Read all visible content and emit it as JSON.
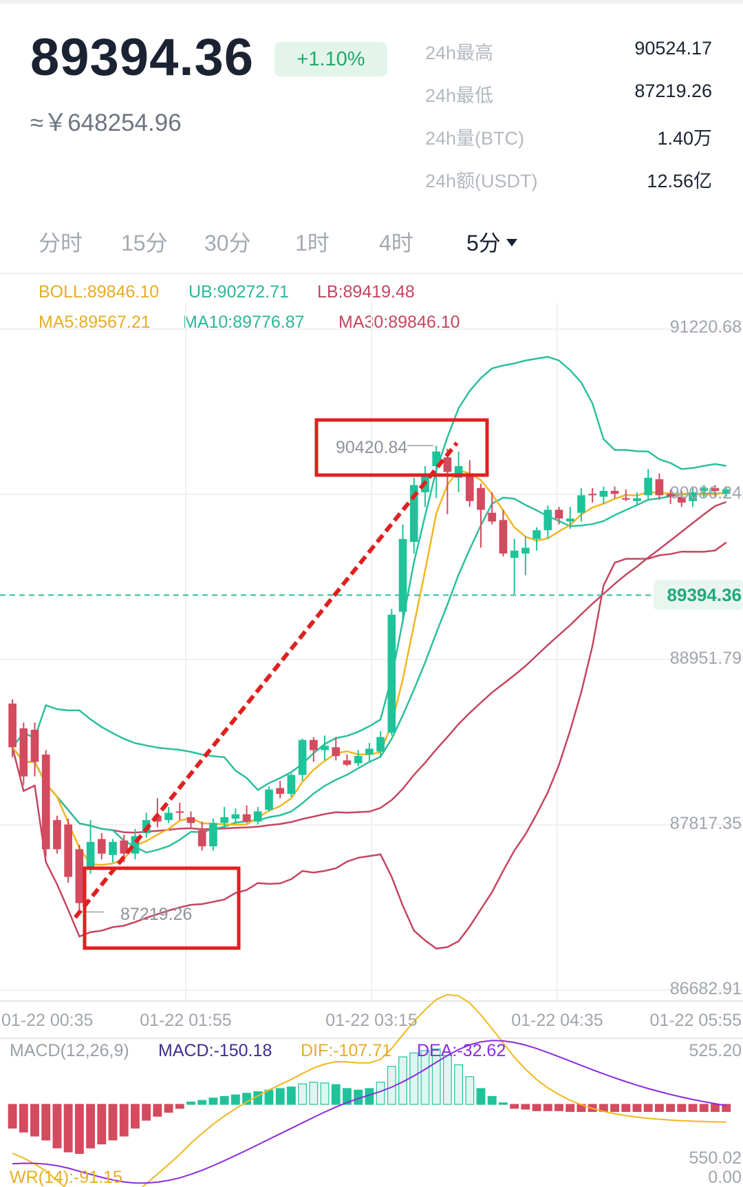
{
  "header": {
    "last_price": "89394.36",
    "change_pct": "+1.10%",
    "cny_price": "≈￥648254.96"
  },
  "stats": [
    {
      "label": "24h最高",
      "value": "90524.17"
    },
    {
      "label": "24h最低",
      "value": "87219.26"
    },
    {
      "label": "24h量(BTC)",
      "value": "1.40万"
    },
    {
      "label": "24h额(USDT)",
      "value": "12.56亿"
    }
  ],
  "tabs": [
    {
      "label": "分时",
      "active": false
    },
    {
      "label": "15分",
      "active": false
    },
    {
      "label": "30分",
      "active": false
    },
    {
      "label": "1时",
      "active": false
    },
    {
      "label": "4时",
      "active": false
    },
    {
      "label": "5分",
      "active": true
    }
  ],
  "indicators": {
    "boll": "BOLL:89846.10",
    "ub": "UB:90272.71",
    "lb": "LB:89419.48",
    "ma5": "MA5:89567.21",
    "ma10": "MA10:89776.87",
    "ma30": "MA30:89846.10"
  },
  "colors": {
    "up": "#1fc39a",
    "down": "#d44a5f",
    "boll_mid": "#f2b61f",
    "ub_line": "#2bbf9c",
    "lb_line": "#c6455e",
    "annotation_red": "#e02020",
    "macd_dif": "#f2b61f",
    "macd_dea": "#8a2be2"
  },
  "chart_data": {
    "type": "candlestick",
    "y_ticks": [
      "91220.68",
      "90086.24",
      "88951.79",
      "87817.35",
      "86682.91"
    ],
    "ylim": [
      86682.91,
      91220.68
    ],
    "x_ticks": [
      "01-22 00:35",
      "01-22 01:55",
      "01-22 03:15",
      "01-22 04:35",
      "01-22 05:55"
    ],
    "current_price": 89394.36,
    "current_price_label": "89394.36",
    "annotations": {
      "high": {
        "value": 90420.84,
        "label": "90420.84"
      },
      "low": {
        "value": 87219.26,
        "label": "87219.26"
      }
    },
    "candles": [
      {
        "o": 88650,
        "h": 88680,
        "l": 88280,
        "c": 88350
      },
      {
        "o": 88480,
        "h": 88520,
        "l": 88090,
        "c": 88150
      },
      {
        "o": 88470,
        "h": 88520,
        "l": 88150,
        "c": 88250
      },
      {
        "o": 88300,
        "h": 88330,
        "l": 87600,
        "c": 87650
      },
      {
        "o": 87850,
        "h": 87880,
        "l": 87620,
        "c": 87650
      },
      {
        "o": 87820,
        "h": 87860,
        "l": 87420,
        "c": 87460
      },
      {
        "o": 87650,
        "h": 87680,
        "l": 87200,
        "c": 87280
      },
      {
        "o": 87520,
        "h": 87850,
        "l": 87480,
        "c": 87700
      },
      {
        "o": 87720,
        "h": 87760,
        "l": 87580,
        "c": 87620
      },
      {
        "o": 87610,
        "h": 87720,
        "l": 87560,
        "c": 87700
      },
      {
        "o": 87710,
        "h": 87750,
        "l": 87560,
        "c": 87620
      },
      {
        "o": 87620,
        "h": 87790,
        "l": 87580,
        "c": 87740
      },
      {
        "o": 87760,
        "h": 87900,
        "l": 87730,
        "c": 87850
      },
      {
        "o": 87880,
        "h": 88000,
        "l": 87800,
        "c": 87840
      },
      {
        "o": 87850,
        "h": 87940,
        "l": 87830,
        "c": 87900
      },
      {
        "o": 87910,
        "h": 87970,
        "l": 87850,
        "c": 87900
      },
      {
        "o": 87870,
        "h": 87910,
        "l": 87800,
        "c": 87830
      },
      {
        "o": 87780,
        "h": 87840,
        "l": 87640,
        "c": 87670
      },
      {
        "o": 87670,
        "h": 87860,
        "l": 87640,
        "c": 87830
      },
      {
        "o": 87830,
        "h": 87940,
        "l": 87810,
        "c": 87870
      },
      {
        "o": 87860,
        "h": 87930,
        "l": 87830,
        "c": 87890
      },
      {
        "o": 87890,
        "h": 87950,
        "l": 87830,
        "c": 87840
      },
      {
        "o": 87840,
        "h": 87940,
        "l": 87820,
        "c": 87910
      },
      {
        "o": 87920,
        "h": 88080,
        "l": 87910,
        "c": 88060
      },
      {
        "o": 88070,
        "h": 88120,
        "l": 88000,
        "c": 88030
      },
      {
        "o": 88030,
        "h": 88170,
        "l": 88010,
        "c": 88160
      },
      {
        "o": 88160,
        "h": 88410,
        "l": 88120,
        "c": 88400
      },
      {
        "o": 88400,
        "h": 88420,
        "l": 88250,
        "c": 88330
      },
      {
        "o": 88330,
        "h": 88430,
        "l": 88260,
        "c": 88360
      },
      {
        "o": 88350,
        "h": 88420,
        "l": 88260,
        "c": 88290
      },
      {
        "o": 88260,
        "h": 88300,
        "l": 88220,
        "c": 88230
      },
      {
        "o": 88240,
        "h": 88330,
        "l": 88220,
        "c": 88290
      },
      {
        "o": 88300,
        "h": 88380,
        "l": 88250,
        "c": 88340
      },
      {
        "o": 88320,
        "h": 88460,
        "l": 88290,
        "c": 88420
      },
      {
        "o": 88450,
        "h": 89300,
        "l": 88430,
        "c": 89260
      },
      {
        "o": 89280,
        "h": 89880,
        "l": 89200,
        "c": 89780
      },
      {
        "o": 89760,
        "h": 90200,
        "l": 89680,
        "c": 90150
      },
      {
        "o": 90100,
        "h": 90280,
        "l": 90000,
        "c": 90210
      },
      {
        "o": 90280,
        "h": 90420,
        "l": 90060,
        "c": 90380
      },
      {
        "o": 90340,
        "h": 90400,
        "l": 89950,
        "c": 90240
      },
      {
        "o": 90200,
        "h": 90380,
        "l": 90100,
        "c": 90280
      },
      {
        "o": 90220,
        "h": 90320,
        "l": 90000,
        "c": 90040
      },
      {
        "o": 90130,
        "h": 90160,
        "l": 89720,
        "c": 89980
      },
      {
        "o": 89960,
        "h": 90100,
        "l": 89880,
        "c": 89900
      },
      {
        "o": 89910,
        "h": 89980,
        "l": 89660,
        "c": 89680
      },
      {
        "o": 89650,
        "h": 89780,
        "l": 89400,
        "c": 89700
      },
      {
        "o": 89680,
        "h": 89800,
        "l": 89530,
        "c": 89720
      },
      {
        "o": 89780,
        "h": 89860,
        "l": 89700,
        "c": 89840
      },
      {
        "o": 89840,
        "h": 90010,
        "l": 89780,
        "c": 89980
      },
      {
        "o": 89980,
        "h": 90000,
        "l": 89880,
        "c": 89920
      },
      {
        "o": 89900,
        "h": 90000,
        "l": 89850,
        "c": 89920
      },
      {
        "o": 89960,
        "h": 90130,
        "l": 89900,
        "c": 90080
      },
      {
        "o": 90090,
        "h": 90130,
        "l": 90030,
        "c": 90080
      },
      {
        "o": 90070,
        "h": 90140,
        "l": 90020,
        "c": 90110
      },
      {
        "o": 90110,
        "h": 90140,
        "l": 90060,
        "c": 90090
      },
      {
        "o": 90060,
        "h": 90120,
        "l": 90040,
        "c": 90050
      },
      {
        "o": 90040,
        "h": 90100,
        "l": 90010,
        "c": 90060
      },
      {
        "o": 90080,
        "h": 90260,
        "l": 90050,
        "c": 90200
      },
      {
        "o": 90190,
        "h": 90230,
        "l": 90050,
        "c": 90080
      },
      {
        "o": 90090,
        "h": 90120,
        "l": 90020,
        "c": 90070
      },
      {
        "o": 90070,
        "h": 90110,
        "l": 90000,
        "c": 90030
      },
      {
        "o": 90040,
        "h": 90130,
        "l": 90000,
        "c": 90100
      },
      {
        "o": 90110,
        "h": 90150,
        "l": 90060,
        "c": 90130
      },
      {
        "o": 90130,
        "h": 90150,
        "l": 90070,
        "c": 90110
      },
      {
        "o": 90090,
        "h": 90140,
        "l": 90070,
        "c": 90120
      }
    ],
    "macd": {
      "label": "MACD(12,26,9)",
      "macd_text": "MACD:-150.18",
      "dif_text": "DIF:-107.71",
      "dea_text": "DEA:-32.62",
      "top_label": "525.20",
      "bottom_label": "550.02",
      "histogram": [
        -0.3,
        -0.35,
        -0.4,
        -0.45,
        -0.55,
        -0.6,
        -0.62,
        -0.55,
        -0.5,
        -0.45,
        -0.4,
        -0.3,
        -0.2,
        -0.15,
        -0.1,
        -0.05,
        0.03,
        0.05,
        0.08,
        0.1,
        0.12,
        0.14,
        0.16,
        0.18,
        0.2,
        0.22,
        0.26,
        0.28,
        0.27,
        0.25,
        0.2,
        0.18,
        0.2,
        0.28,
        0.48,
        0.6,
        0.65,
        0.68,
        0.7,
        0.62,
        0.5,
        0.35,
        0.2,
        0.1,
        0.02,
        -0.05,
        -0.06,
        -0.08,
        -0.08,
        -0.08,
        -0.09,
        -0.09,
        -0.09,
        -0.09,
        -0.09,
        -0.09,
        -0.09,
        -0.09,
        -0.09,
        -0.09,
        -0.09,
        -0.09,
        -0.09,
        -0.09,
        -0.09
      ]
    },
    "wr_label": "WR(14):-91.15",
    "wr_value_label": "0.00"
  }
}
